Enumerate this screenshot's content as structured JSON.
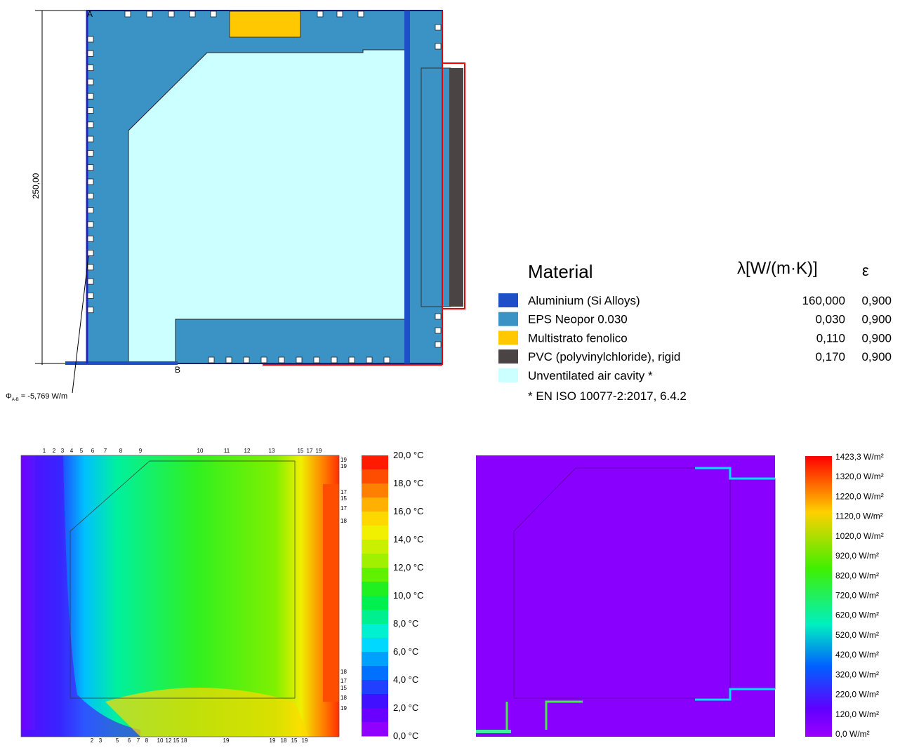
{
  "drawing": {
    "point_a": "A",
    "point_b": "B",
    "dimension": "250,00",
    "flux_symbol": "Φ",
    "flux_subscript": "A-B",
    "flux_value": "= -5,769 W/m"
  },
  "materials_legend": {
    "header": {
      "material": "Material",
      "lambda": "λ[W/(m·K)]",
      "epsilon": "ε"
    },
    "rows": [
      {
        "name": "Aluminium (Si Alloys)",
        "lambda": "160,000",
        "epsilon": "0,900",
        "color": "#1f4fc8"
      },
      {
        "name": "EPS Neopor 0.030",
        "lambda": "0,030",
        "epsilon": "0,900",
        "color": "#3a93c4"
      },
      {
        "name": "Multistrato fenolico",
        "lambda": "0,110",
        "epsilon": "0,900",
        "color": "#ffc800"
      },
      {
        "name": "PVC (polyvinylchloride), rigid",
        "lambda": "0,170",
        "epsilon": "0,900",
        "color": "#4a4444"
      },
      {
        "name": "Unventilated air cavity *",
        "color": "#ccffff"
      }
    ],
    "footnote": "* EN ISO 10077-2:2017, 6.4.2"
  },
  "temperature_plot": {
    "top_labels": [
      "1",
      "2",
      "3",
      "4",
      "5",
      "6",
      "7",
      "8",
      "9",
      "10",
      "11",
      "12",
      "13",
      "15",
      "17",
      "19"
    ],
    "bottom_labels": [
      "2",
      "3",
      "5",
      "6",
      "7",
      "8",
      "10",
      "12",
      "15",
      "18",
      "19",
      "19",
      "18",
      "15",
      "19"
    ],
    "right_labels": [
      "19",
      "19",
      "17",
      "15",
      "17",
      "18",
      "18",
      "17",
      "15",
      "18",
      "19"
    ],
    "scale": [
      "20,0 °C",
      "18,0 °C",
      "16,0 °C",
      "14,0 °C",
      "12,0 °C",
      "10,0 °C",
      "8,0 °C",
      "6,0 °C",
      "4,0 °C",
      "2,0 °C",
      "0,0 °C"
    ],
    "band_colors": [
      "#ff1a00",
      "#ff4d00",
      "#ff8000",
      "#ffb000",
      "#ffd800",
      "#f0f000",
      "#c8f000",
      "#a0f000",
      "#60f000",
      "#20f020",
      "#00f050",
      "#00f090",
      "#00f0d0",
      "#00d8ff",
      "#00a0ff",
      "#0070ff",
      "#2040ff",
      "#4010ff",
      "#6a00ff",
      "#9000ff"
    ]
  },
  "flux_plot": {
    "scale": [
      "1423,3 W/m²",
      "1320,0 W/m²",
      "1220,0 W/m²",
      "1120,0 W/m²",
      "1020,0 W/m²",
      "920,0 W/m²",
      "820,0 W/m²",
      "720,0 W/m²",
      "620,0 W/m²",
      "520,0 W/m²",
      "420,0 W/m²",
      "320,0 W/m²",
      "220,0 W/m²",
      "120,0 W/m²",
      "0,0 W/m²"
    ]
  }
}
